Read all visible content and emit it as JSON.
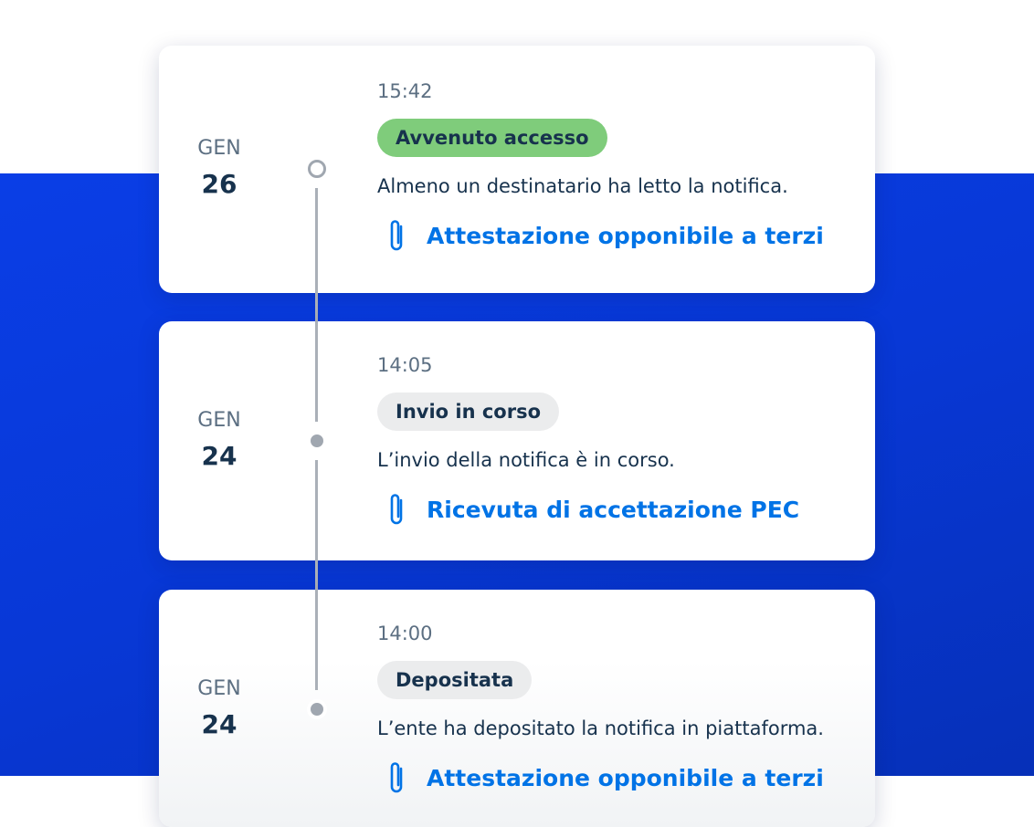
{
  "colors": {
    "brand_blue": "#0a3ee6",
    "link": "#0073e6",
    "success_badge": "#7fcc7b",
    "neutral_badge": "#ebeced"
  },
  "timeline": [
    {
      "month": "GEN",
      "day": "26",
      "time": "15:42",
      "status": "Avvenuto accesso",
      "status_color": "#7fcc7b",
      "description": "Almeno un destinatario ha letto la notifica.",
      "attachment": "Attestazione opponibile a terzi",
      "icon": "paperclip-icon"
    },
    {
      "month": "GEN",
      "day": "24",
      "time": "14:05",
      "status": "Invio in corso",
      "status_color": "#ebeced",
      "description": "L’invio della notifica è in corso.",
      "attachment": "Ricevuta di accettazione PEC",
      "icon": "paperclip-icon"
    },
    {
      "month": "GEN",
      "day": "24",
      "time": "14:00",
      "status": "Depositata",
      "status_color": "#ebeced",
      "description": "L’ente ha depositato la notifica in piattaforma.",
      "attachment": "Attestazione opponibile a terzi",
      "icon": "paperclip-icon"
    }
  ]
}
